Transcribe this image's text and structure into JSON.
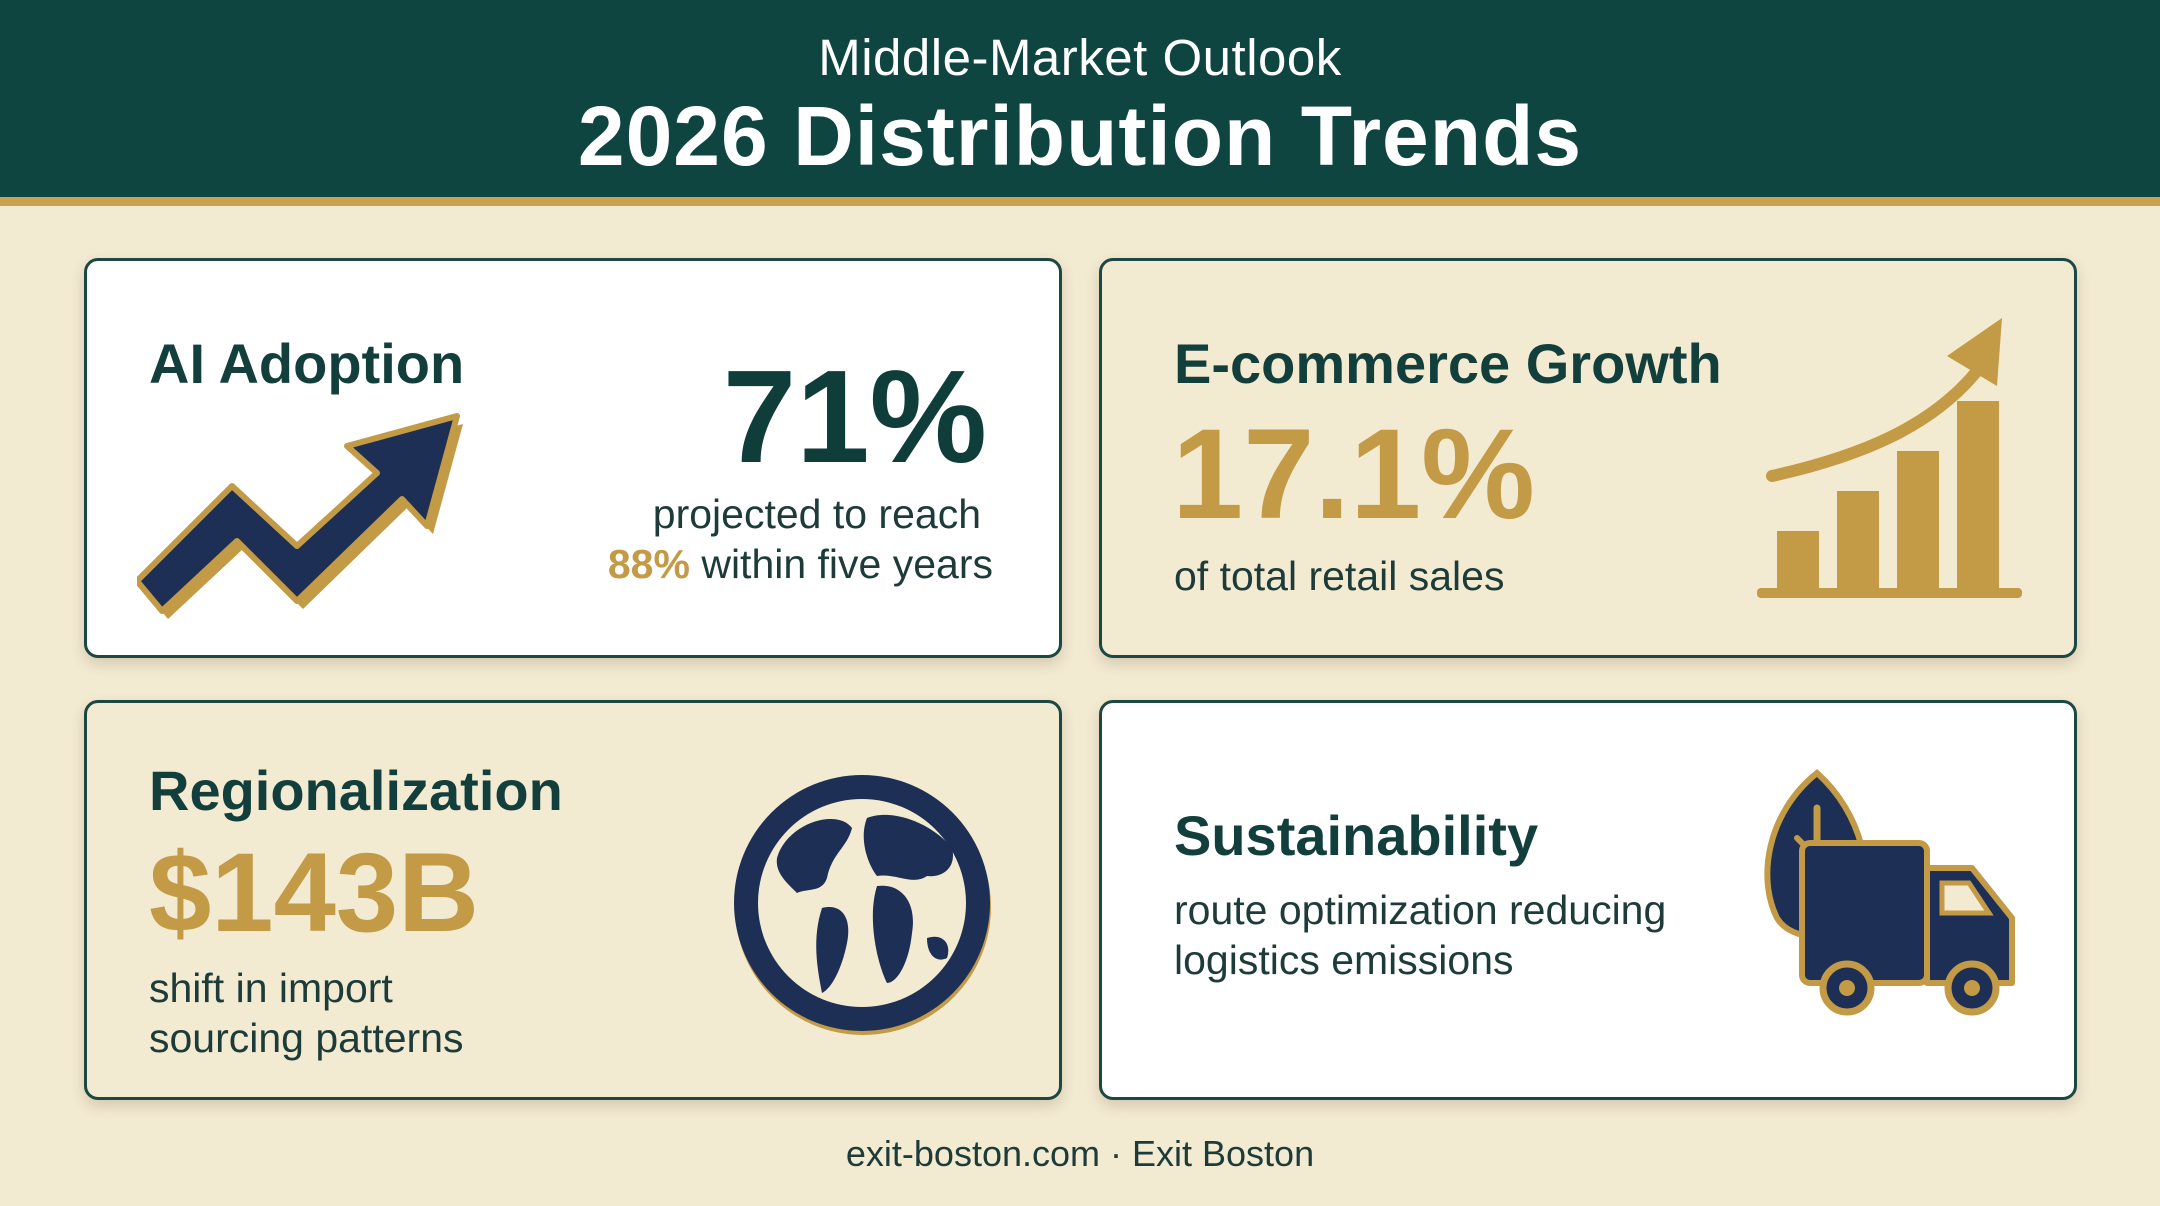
{
  "header": {
    "subtitle": "Middle-Market Outlook",
    "title": "2026 Distribution Trends"
  },
  "cards": {
    "ai": {
      "title": "AI Adoption",
      "stat": "71%",
      "line1": "projected to reach",
      "highlight": "88%",
      "line2_rest": " within five years",
      "icon": "trend-arrow-icon"
    },
    "ecommerce": {
      "title": "E-commerce Growth",
      "stat": "17.1%",
      "caption": "of total retail sales",
      "icon": "bar-chart-growth-icon"
    },
    "regional": {
      "title": "Regionalization",
      "stat": "$143B",
      "line1": "shift in import",
      "line2": "sourcing patterns",
      "icon": "globe-icon"
    },
    "sustain": {
      "title": "Sustainability",
      "line1": "route optimization reducing",
      "line2": "logistics emissions",
      "icon": "leaf-truck-icon"
    }
  },
  "footer": {
    "text": "exit-boston.com · Exit Boston"
  },
  "colors": {
    "header": "#0f4541",
    "gold": "#c39a45",
    "navy": "#1d2f55",
    "cream": "#f3ead2"
  }
}
